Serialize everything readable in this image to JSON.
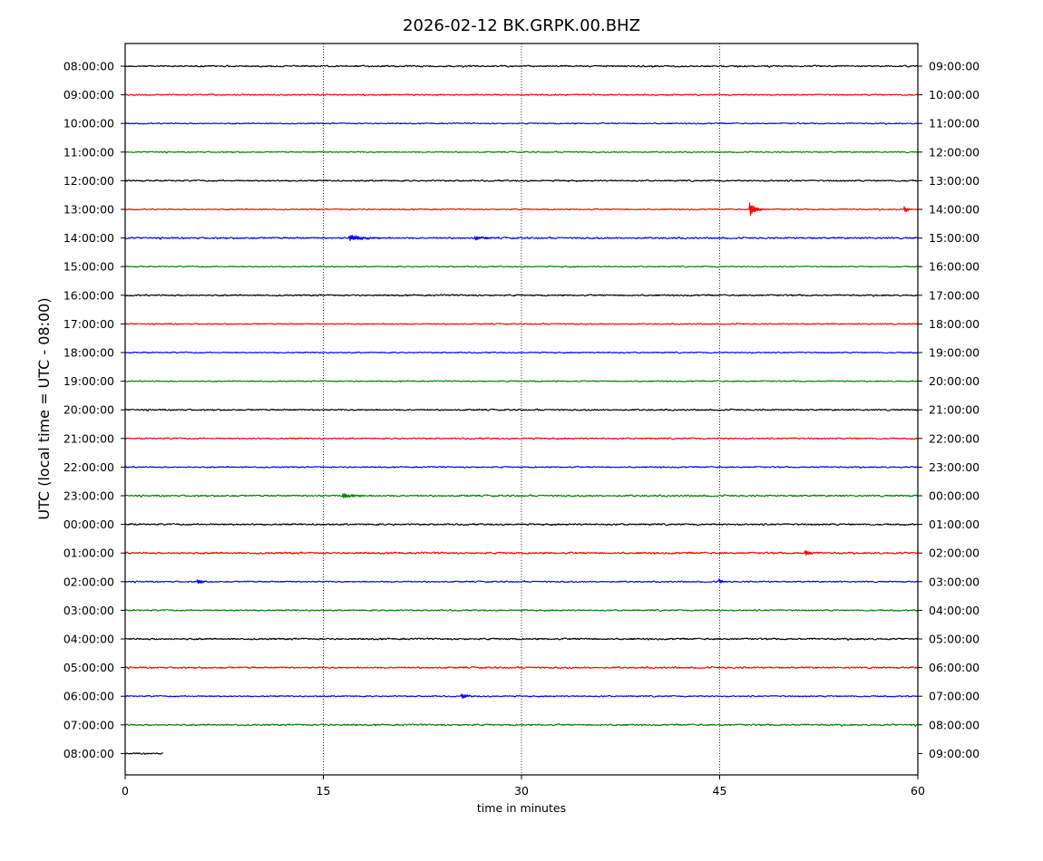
{
  "chart_data": {
    "type": "line",
    "title": "2026-02-12 BK.GRPK.00.BHZ",
    "xlabel": "time in minutes",
    "ylabel": "UTC (local time = UTC - 08:00)",
    "xlim": [
      0,
      60
    ],
    "x_ticks": [
      "0",
      "15",
      "30",
      "45",
      "60"
    ],
    "x_tick_values": [
      0,
      15,
      30,
      45,
      60
    ],
    "vertical_grid_minutes": [
      15,
      30,
      45
    ],
    "grid": "vertical dotted lines at 15, 30, 45 minutes",
    "colors_cycle": [
      "#000000",
      "#ff0000",
      "#0000ff",
      "#008000"
    ],
    "left_labels": [
      "08:00:00",
      "09:00:00",
      "10:00:00",
      "11:00:00",
      "12:00:00",
      "13:00:00",
      "14:00:00",
      "15:00:00",
      "16:00:00",
      "17:00:00",
      "18:00:00",
      "19:00:00",
      "20:00:00",
      "21:00:00",
      "22:00:00",
      "23:00:00",
      "00:00:00",
      "01:00:00",
      "02:00:00",
      "03:00:00",
      "04:00:00",
      "05:00:00",
      "06:00:00",
      "07:00:00",
      "08:00:00"
    ],
    "right_labels": [
      "09:00:00",
      "10:00:00",
      "11:00:00",
      "12:00:00",
      "13:00:00",
      "14:00:00",
      "15:00:00",
      "16:00:00",
      "17:00:00",
      "18:00:00",
      "19:00:00",
      "20:00:00",
      "21:00:00",
      "22:00:00",
      "23:00:00",
      "00:00:00",
      "01:00:00",
      "02:00:00",
      "03:00:00",
      "04:00:00",
      "05:00:00",
      "06:00:00",
      "07:00:00",
      "08:00:00",
      "09:00:00"
    ],
    "series": [
      {
        "color": "#000000",
        "end_minute": 60,
        "noise": 1.0,
        "events": []
      },
      {
        "color": "#ff0000",
        "end_minute": 60,
        "noise": 0.9,
        "events": []
      },
      {
        "color": "#0000ff",
        "end_minute": 60,
        "noise": 0.8,
        "events": []
      },
      {
        "color": "#008000",
        "end_minute": 60,
        "noise": 0.8,
        "events": []
      },
      {
        "color": "#000000",
        "end_minute": 60,
        "noise": 1.0,
        "events": []
      },
      {
        "color": "#ff0000",
        "end_minute": 60,
        "noise": 0.8,
        "events": [
          {
            "minute": 47.3,
            "amp": 7,
            "duration": 1.2
          },
          {
            "minute": 59.0,
            "amp": 3,
            "duration": 0.8
          }
        ]
      },
      {
        "color": "#0000ff",
        "end_minute": 60,
        "noise": 1.1,
        "events": [
          {
            "minute": 17.0,
            "amp": 3,
            "duration": 3.0
          },
          {
            "minute": 26.5,
            "amp": 2,
            "duration": 2.0
          }
        ]
      },
      {
        "color": "#008000",
        "end_minute": 60,
        "noise": 0.8,
        "events": []
      },
      {
        "color": "#000000",
        "end_minute": 60,
        "noise": 1.0,
        "events": []
      },
      {
        "color": "#ff0000",
        "end_minute": 60,
        "noise": 0.8,
        "events": []
      },
      {
        "color": "#0000ff",
        "end_minute": 60,
        "noise": 0.8,
        "events": []
      },
      {
        "color": "#008000",
        "end_minute": 60,
        "noise": 0.8,
        "events": []
      },
      {
        "color": "#000000",
        "end_minute": 60,
        "noise": 1.0,
        "events": []
      },
      {
        "color": "#ff0000",
        "end_minute": 60,
        "noise": 1.0,
        "events": []
      },
      {
        "color": "#0000ff",
        "end_minute": 60,
        "noise": 0.9,
        "events": []
      },
      {
        "color": "#008000",
        "end_minute": 60,
        "noise": 1.1,
        "events": [
          {
            "minute": 16.5,
            "amp": 2.5,
            "duration": 2.0
          }
        ]
      },
      {
        "color": "#000000",
        "end_minute": 60,
        "noise": 1.1,
        "events": []
      },
      {
        "color": "#ff0000",
        "end_minute": 60,
        "noise": 1.2,
        "events": [
          {
            "minute": 51.5,
            "amp": 3,
            "duration": 1.0
          }
        ]
      },
      {
        "color": "#0000ff",
        "end_minute": 60,
        "noise": 0.9,
        "events": [
          {
            "minute": 5.5,
            "amp": 2.5,
            "duration": 1.0
          },
          {
            "minute": 45.0,
            "amp": 2.5,
            "duration": 0.6
          }
        ]
      },
      {
        "color": "#008000",
        "end_minute": 60,
        "noise": 1.0,
        "events": []
      },
      {
        "color": "#000000",
        "end_minute": 60,
        "noise": 1.1,
        "events": []
      },
      {
        "color": "#ff0000",
        "end_minute": 60,
        "noise": 1.1,
        "events": []
      },
      {
        "color": "#0000ff",
        "end_minute": 60,
        "noise": 0.9,
        "events": [
          {
            "minute": 25.5,
            "amp": 2.5,
            "duration": 1.2
          }
        ]
      },
      {
        "color": "#008000",
        "end_minute": 60,
        "noise": 1.1,
        "events": []
      },
      {
        "color": "#000000",
        "end_minute": 2.9,
        "noise": 1.0,
        "events": []
      }
    ]
  }
}
